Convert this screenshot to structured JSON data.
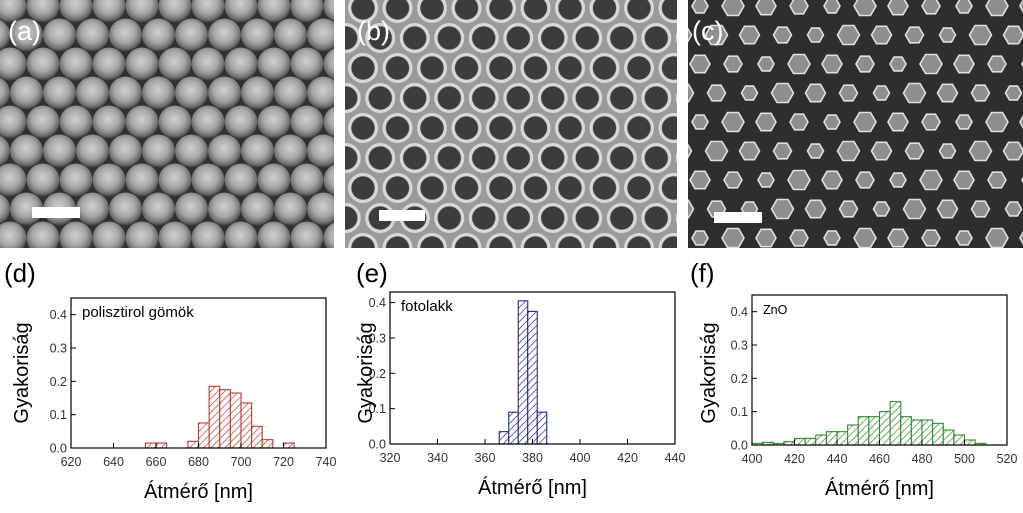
{
  "panels": {
    "a": {
      "letter": "(a)"
    },
    "b": {
      "letter": "(b)"
    },
    "c": {
      "letter": "(c)"
    },
    "d": {
      "letter": "(d)"
    },
    "e": {
      "letter": "(e)"
    },
    "f": {
      "letter": "(f)"
    }
  },
  "colors": {
    "d": "#c0392b",
    "e": "#1f2a8c",
    "f": "#2e8b2e"
  },
  "chart_data": [
    {
      "type": "bar",
      "panel": "d",
      "annotation": "polisztirol gömök",
      "xlabel": "Átmérő [nm]",
      "ylabel": "Gyakoriság",
      "xlim": [
        620,
        740
      ],
      "ylim": [
        0,
        0.45
      ],
      "xticks": [
        620,
        640,
        660,
        680,
        700,
        720,
        740
      ],
      "yticks": [
        0.0,
        0.1,
        0.2,
        0.3,
        0.4
      ],
      "bin_width": 5,
      "bins": [
        {
          "x": 655,
          "y": 0.015
        },
        {
          "x": 660,
          "y": 0.015
        },
        {
          "x": 675,
          "y": 0.02
        },
        {
          "x": 680,
          "y": 0.075
        },
        {
          "x": 685,
          "y": 0.185
        },
        {
          "x": 690,
          "y": 0.175
        },
        {
          "x": 695,
          "y": 0.165
        },
        {
          "x": 700,
          "y": 0.135
        },
        {
          "x": 705,
          "y": 0.065
        },
        {
          "x": 710,
          "y": 0.025
        },
        {
          "x": 720,
          "y": 0.015
        }
      ]
    },
    {
      "type": "bar",
      "panel": "e",
      "annotation": "fotolakk",
      "xlabel": "Átmérő [nm]",
      "ylabel": "Gyakoriság",
      "xlim": [
        320,
        440
      ],
      "ylim": [
        0,
        0.43
      ],
      "xticks": [
        320,
        340,
        360,
        380,
        400,
        420,
        440
      ],
      "yticks": [
        0.0,
        0.1,
        0.2,
        0.3,
        0.4
      ],
      "bin_width": 4,
      "bins": [
        {
          "x": 366,
          "y": 0.035
        },
        {
          "x": 370,
          "y": 0.09
        },
        {
          "x": 374,
          "y": 0.405
        },
        {
          "x": 378,
          "y": 0.375
        },
        {
          "x": 382,
          "y": 0.09
        }
      ]
    },
    {
      "type": "bar",
      "panel": "f",
      "annotation": "ZnO",
      "xlabel": "Átmérő [nm]",
      "ylabel": "Gyakoriság",
      "xlim": [
        400,
        520
      ],
      "ylim": [
        0,
        0.45
      ],
      "xticks": [
        400,
        420,
        440,
        460,
        480,
        500,
        520
      ],
      "yticks": [
        0.0,
        0.1,
        0.2,
        0.3,
        0.4
      ],
      "bin_width": 5,
      "bins": [
        {
          "x": 400,
          "y": 0.005
        },
        {
          "x": 405,
          "y": 0.008
        },
        {
          "x": 410,
          "y": 0.005
        },
        {
          "x": 415,
          "y": 0.01
        },
        {
          "x": 420,
          "y": 0.02
        },
        {
          "x": 425,
          "y": 0.02
        },
        {
          "x": 430,
          "y": 0.03
        },
        {
          "x": 435,
          "y": 0.04
        },
        {
          "x": 440,
          "y": 0.04
        },
        {
          "x": 445,
          "y": 0.06
        },
        {
          "x": 450,
          "y": 0.085
        },
        {
          "x": 455,
          "y": 0.085
        },
        {
          "x": 460,
          "y": 0.1
        },
        {
          "x": 465,
          "y": 0.13
        },
        {
          "x": 470,
          "y": 0.085
        },
        {
          "x": 475,
          "y": 0.075
        },
        {
          "x": 480,
          "y": 0.075
        },
        {
          "x": 485,
          "y": 0.065
        },
        {
          "x": 490,
          "y": 0.045
        },
        {
          "x": 495,
          "y": 0.03
        },
        {
          "x": 500,
          "y": 0.015
        },
        {
          "x": 505,
          "y": 0.005
        }
      ]
    }
  ]
}
